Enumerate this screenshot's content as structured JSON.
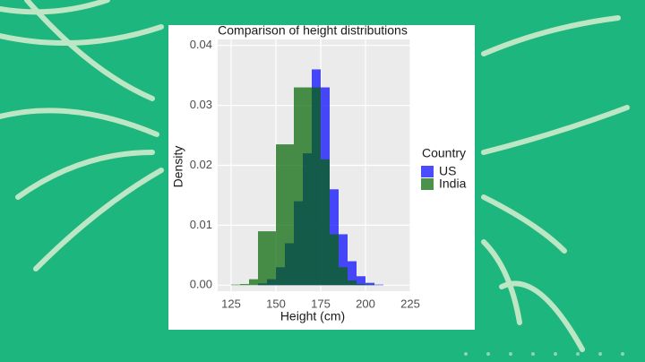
{
  "chart_data": {
    "type": "histogram",
    "title": "Comparison of height distributions",
    "x_label": "Height (cm)",
    "y_label": "Density",
    "legend_title": "Country",
    "bins": [
      120,
      125,
      130,
      135,
      140,
      145,
      150,
      155,
      160,
      165,
      170,
      175,
      180,
      185,
      190,
      195,
      200,
      205,
      210,
      215
    ],
    "series": [
      {
        "name": "US",
        "color": "#0000ff",
        "values": [
          0,
          0,
          0,
          0,
          0.0003,
          0.001,
          0.003,
          0.007,
          0.014,
          0.022,
          0.036,
          0.033,
          0.016,
          0.0085,
          0.004,
          0.0015,
          0.0004,
          0.0001,
          0
        ]
      },
      {
        "name": "India",
        "color": "#006400",
        "values": [
          0,
          0.0001,
          0.0002,
          0.001,
          0.009,
          0.009,
          0.0235,
          0.0235,
          0.033,
          0.033,
          0.033,
          0.021,
          0.0085,
          0.003,
          0.0008,
          0.0002,
          0.0001,
          0,
          0
        ]
      }
    ],
    "xlim": [
      117.5,
      225
    ],
    "ylim": [
      -0.001,
      0.041
    ],
    "xticks": [
      125,
      150,
      175,
      200,
      225
    ],
    "yticks": [
      {
        "value": 0,
        "label": "0.00"
      },
      {
        "value": 0.01,
        "label": "0.01"
      },
      {
        "value": 0.02,
        "label": "0.02"
      },
      {
        "value": 0.03,
        "label": "0.03"
      },
      {
        "value": 0.04,
        "label": "0.04"
      }
    ],
    "grid": true,
    "opacity": 0.7
  }
}
